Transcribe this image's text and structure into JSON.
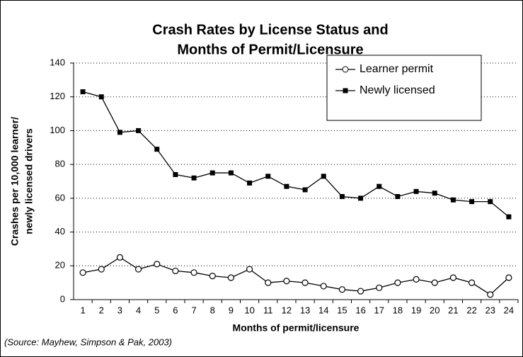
{
  "chart_data": {
    "type": "line",
    "title": [
      "Crash Rates by License Status and",
      "Months of Permit/Licensure"
    ],
    "xlabel": "Months of permit/licensure",
    "ylabel": [
      "Crashes per 10,000 learner/",
      "newly licensed drivers"
    ],
    "source": "(Source: Mayhew, Simpson & Pak, 2003)",
    "categories": [
      "1",
      "2",
      "3",
      "4",
      "5",
      "6",
      "7",
      "8",
      "9",
      "10",
      "11",
      "12",
      "13",
      "14",
      "15",
      "16",
      "17",
      "18",
      "19",
      "20",
      "21",
      "22",
      "23",
      "24"
    ],
    "series": [
      {
        "name": "Learner permit",
        "color": "#000000",
        "marker": "circle",
        "values": [
          16,
          18,
          25,
          18,
          21,
          17,
          16,
          14,
          13,
          18,
          10,
          11,
          10,
          8,
          6,
          5,
          7,
          10,
          12,
          10,
          13,
          10,
          3,
          13
        ]
      },
      {
        "name": "Newly licensed",
        "color": "#000000",
        "marker": "square",
        "values": [
          123,
          120,
          99,
          100,
          89,
          74,
          72,
          75,
          75,
          69,
          73,
          67,
          65,
          73,
          61,
          60,
          67,
          61,
          64,
          63,
          59,
          58,
          58,
          49
        ]
      }
    ],
    "ylim": [
      0,
      140
    ],
    "yticks": [
      0,
      20,
      40,
      60,
      80,
      100,
      120,
      140
    ],
    "grid": true,
    "legend": "upper right"
  }
}
